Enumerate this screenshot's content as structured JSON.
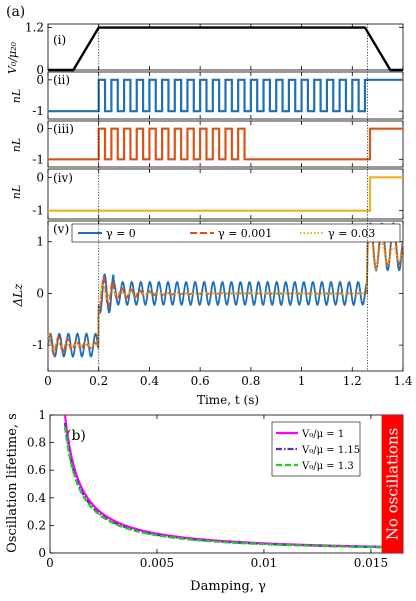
{
  "chart_data": [
    {
      "type": "line",
      "panel_label": "(a)",
      "sub_label": "(i)",
      "ylabel": "V₀/μ₂₀",
      "xlim": [
        0,
        1.4
      ],
      "ylim": [
        0,
        1.3
      ],
      "yticks": [
        "0",
        "1.2"
      ],
      "ytick_values": [
        0,
        1.2
      ],
      "series": [
        {
          "color": "#000000",
          "x": [
            0,
            0.1,
            0.2,
            1.25,
            1.35,
            1.4
          ],
          "y": [
            0,
            0,
            1.2,
            1.2,
            0,
            0
          ]
        }
      ]
    },
    {
      "type": "line",
      "sub_label": "(ii)",
      "ylabel": "nL",
      "xlim": [
        0,
        1.4
      ],
      "ylim": [
        -1.25,
        0.25
      ],
      "yticks": [
        "0",
        "-1"
      ],
      "ytick_values": [
        0,
        -1
      ],
      "series": [
        {
          "color": "#1f6fb4",
          "kind": "square",
          "start": 0.2,
          "end": 1.27,
          "period": 0.05,
          "base": -1,
          "high": 0,
          "after": 0
        }
      ]
    },
    {
      "type": "line",
      "sub_label": "(iii)",
      "ylabel": "nL",
      "xlim": [
        0,
        1.4
      ],
      "ylim": [
        -1.25,
        0.25
      ],
      "yticks": [
        "0",
        "-1"
      ],
      "ytick_values": [
        0,
        -1
      ],
      "series": [
        {
          "color": "#d95319",
          "kind": "square",
          "start": 0.2,
          "end": 0.78,
          "period": 0.05,
          "base": -1,
          "high": 0,
          "after": -1,
          "switch": 1.27,
          "switch_to": 0
        }
      ]
    },
    {
      "type": "line",
      "sub_label": "(iv)",
      "ylabel": "nL",
      "xlim": [
        0,
        1.4
      ],
      "ylim": [
        -1.25,
        0.25
      ],
      "yticks": [
        "0",
        "-1"
      ],
      "ytick_values": [
        0,
        -1
      ],
      "series": [
        {
          "color": "#edb120",
          "kind": "step",
          "x": [
            0,
            1.27,
            1.27,
            1.4
          ],
          "y": [
            -1,
            -1,
            0,
            0
          ]
        }
      ]
    },
    {
      "type": "line",
      "sub_label": "(v)",
      "ylabel": "ΔLz",
      "xlabel": "Time, t (s)",
      "xlim": [
        0,
        1.4
      ],
      "ylim": [
        -1.5,
        1.4
      ],
      "xticks": [
        "0",
        "0.2",
        "0.4",
        "0.6",
        "0.8",
        "1",
        "1.2",
        "1.4"
      ],
      "xtick_values": [
        0,
        0.2,
        0.4,
        0.6,
        0.8,
        1,
        1.2,
        1.4
      ],
      "yticks": [
        "1",
        "0",
        "-1"
      ],
      "ytick_values": [
        1,
        0,
        -1
      ],
      "legend": [
        "γ = 0",
        "γ = 0.001",
        "γ = 0.03"
      ],
      "legend_position": "top",
      "series": [
        {
          "name": "γ = 0",
          "color": "#1f6fb4",
          "dash": "",
          "damp": 0,
          "amp": 0.22
        },
        {
          "name": "γ = 0.001",
          "color": "#d95319",
          "dash": "7,3",
          "damp": 8,
          "amp": 0.22
        },
        {
          "name": "γ = 0.03",
          "color": "#edb120",
          "dash": "1.5,2",
          "damp": 40,
          "amp": 0.22
        }
      ]
    },
    {
      "type": "line",
      "panel_label": "(b)",
      "ylabel": "Oscillation lifetime, s",
      "xlabel": "Damping, γ",
      "xlim": [
        0,
        0.0165
      ],
      "ylim": [
        0,
        1
      ],
      "xticks": [
        "0",
        "0.005",
        "0.01",
        "0.015"
      ],
      "xtick_values": [
        0,
        0.005,
        0.01,
        0.015
      ],
      "yticks": [
        "0",
        "0.2",
        "0.4",
        "0.6",
        "0.8",
        "1"
      ],
      "ytick_values": [
        0,
        0.2,
        0.4,
        0.6,
        0.8,
        1
      ],
      "legend": [
        "V₀/μ = 1",
        "V₀/μ = 1.15",
        "V₀/μ = 1.3"
      ],
      "legend_position": "top-right",
      "region": {
        "from": 0.0155,
        "to": 0.0165,
        "color": "#ff0000",
        "label": "No oscillations"
      },
      "series": [
        {
          "name": "V₀/μ = 1",
          "color": "#ff00ff",
          "dash": "",
          "k": 0.0007
        },
        {
          "name": "V₀/μ = 1.15",
          "color": "#5b2fb0",
          "dash": "6,2,1.5,2",
          "k": 0.00066
        },
        {
          "name": "V₀/μ = 1.3",
          "color": "#22cc22",
          "dash": "6,3",
          "k": 0.00064
        }
      ]
    }
  ]
}
